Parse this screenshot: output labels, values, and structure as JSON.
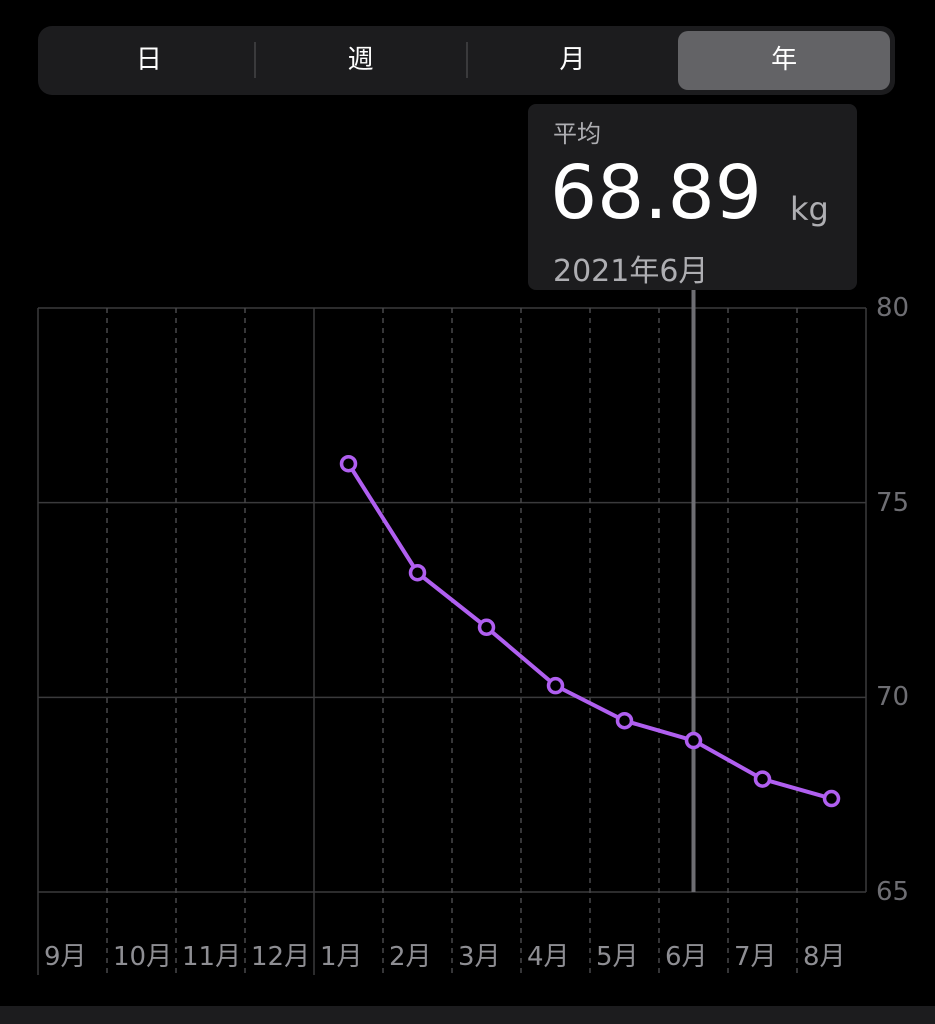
{
  "segments": {
    "items": [
      "日",
      "週",
      "月",
      "年"
    ],
    "selected_index": 3
  },
  "tooltip": {
    "label": "平均",
    "value": 68.89,
    "unit": "kg",
    "date": "2021年6月"
  },
  "chart_data": {
    "type": "line",
    "categories": [
      "9月",
      "10月",
      "11月",
      "12月",
      "1月",
      "2月",
      "3月",
      "4月",
      "5月",
      "6月",
      "7月",
      "8月"
    ],
    "series": [
      {
        "color": "#b05ff0",
        "values": [
          null,
          null,
          null,
          null,
          76.0,
          73.2,
          71.8,
          70.3,
          69.4,
          68.89,
          67.9,
          67.4
        ]
      }
    ],
    "ylim": [
      65,
      80
    ],
    "yticks": [
      65,
      70,
      75,
      80
    ],
    "grid": true,
    "selected_index": 9
  }
}
